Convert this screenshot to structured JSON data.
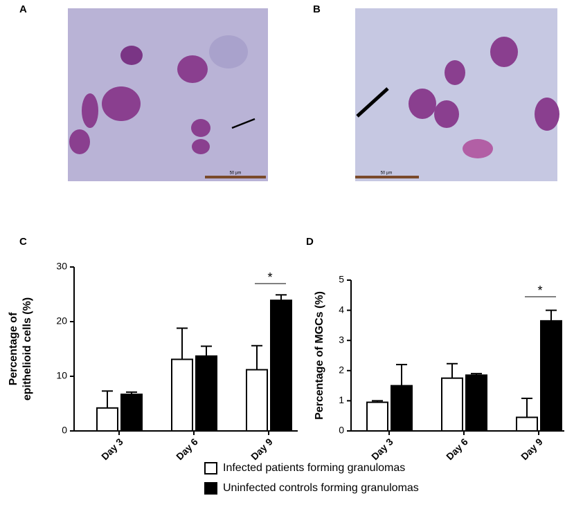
{
  "images": [
    {
      "label": "A",
      "scale_bar": "50 µm"
    },
    {
      "label": "B",
      "scale_bar": "50 µm"
    }
  ],
  "chart_data": [
    {
      "type": "bar",
      "panel": "C",
      "ylabel": [
        "Percentage of",
        "epithelioid cells (%)"
      ],
      "categories": [
        "Day 3",
        "Day 6",
        "Day 9"
      ],
      "series": [
        {
          "name": "Infected patients forming granulomas",
          "color": "#ffffff",
          "values": [
            4.2,
            13.1,
            11.2
          ],
          "errors": [
            3.1,
            5.7,
            4.4
          ]
        },
        {
          "name": "Uninfected controls forming granulomas",
          "color": "#000000",
          "values": [
            6.7,
            13.7,
            23.9
          ],
          "errors": [
            0.4,
            1.8,
            1.0
          ]
        }
      ],
      "ylim": [
        0,
        30
      ],
      "yticks": [
        0,
        10,
        20,
        30
      ],
      "annotation": "*"
    },
    {
      "type": "bar",
      "panel": "D",
      "ylabel": [
        "Percentage of MGCs (%)"
      ],
      "categories": [
        "Day 3",
        "Day 6",
        "Day 9"
      ],
      "series": [
        {
          "color": "#ffffff",
          "values": [
            0.95,
            1.75,
            0.45
          ],
          "errors": [
            0.05,
            0.48,
            0.63
          ]
        },
        {
          "color": "#000000",
          "values": [
            1.5,
            1.85,
            3.65
          ],
          "errors": [
            0.7,
            0.05,
            0.35
          ]
        }
      ],
      "ylim": [
        0,
        5
      ],
      "yticks": [
        0,
        1,
        2,
        3,
        4,
        5
      ],
      "annotation": "*"
    }
  ]
}
